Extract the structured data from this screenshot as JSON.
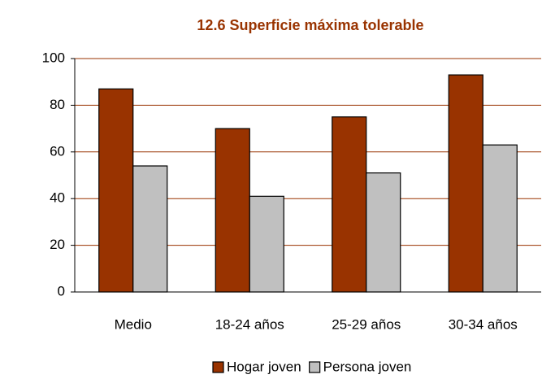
{
  "chart_data": {
    "type": "bar",
    "title": "12.6 Superficie máxima tolerable",
    "categories": [
      "Medio",
      "18-24 años",
      "25-29 años",
      "30-34 años"
    ],
    "series": [
      {
        "name": "Hogar joven",
        "color": "#993300",
        "values": [
          87,
          70,
          75,
          93
        ]
      },
      {
        "name": "Persona joven",
        "color": "#c0c0c0",
        "values": [
          54,
          41,
          51,
          63
        ]
      }
    ],
    "ylim": [
      0,
      100
    ],
    "yticks": [
      0,
      20,
      40,
      60,
      80,
      100
    ],
    "grid": true,
    "gridcolor": "#993300",
    "legend": "bottom"
  }
}
